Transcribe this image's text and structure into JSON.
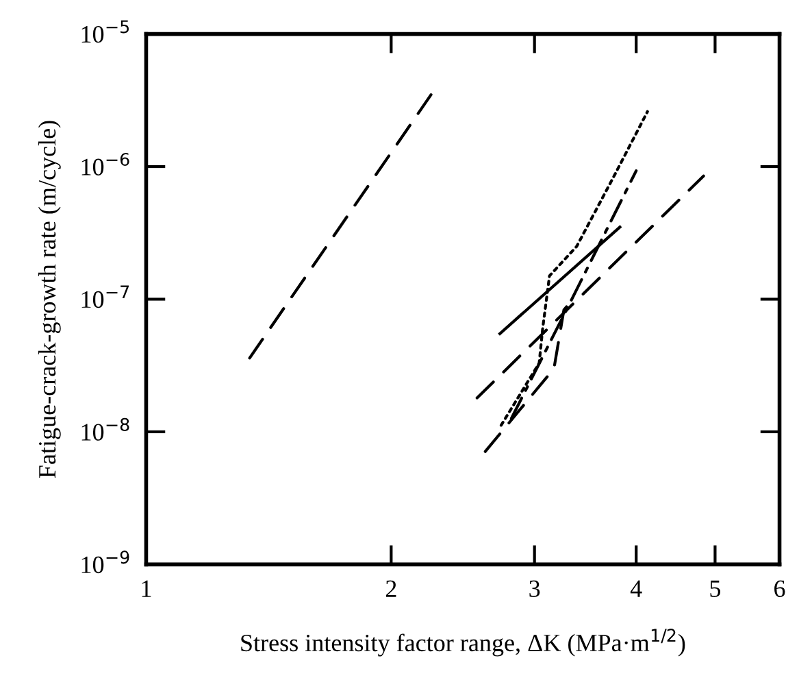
{
  "chart_data": {
    "type": "line",
    "xlabel": "Stress intensity factor range, ΔK (MPa·m$^{1/2}$)",
    "ylabel": "Fatigue-crack-growth rate (m/cycle)",
    "log": "xy",
    "grid": false,
    "legend": false,
    "marker": "none",
    "xlim": [
      1,
      6
    ],
    "xticks": [
      1,
      2,
      3,
      4,
      5,
      6
    ],
    "ylim": [
      1e-09,
      1e-05
    ],
    "yticks": [
      {
        "value": 1e-09,
        "label": "10$^{−9}$"
      },
      {
        "value": 1e-08,
        "label": "10$^{−8}$"
      },
      {
        "value": 1e-07,
        "label": "10$^{−7}$"
      },
      {
        "value": 1e-06,
        "label": "10$^{−6}$"
      },
      {
        "value": 1e-05,
        "label": "10$^{−5}$"
      }
    ],
    "series": [
      {
        "color": "#000000",
        "line_style": "dashed",
        "x": [
          1.34,
          2.24
        ],
        "values": [
          3.6e-08,
          3.5e-06
        ]
      },
      {
        "color": "#000000",
        "line_style": "solid",
        "x": [
          2.72,
          3.82
        ],
        "values": [
          5.5e-08,
          3.5e-07
        ]
      },
      {
        "color": "#000000",
        "line_style": "dashed",
        "x": [
          2.55,
          4.84
        ],
        "values": [
          1.8e-08,
          8.5e-07
        ]
      },
      {
        "color": "#000000",
        "line_style": "dashed",
        "x": [
          2.61,
          3.17,
          3.26,
          3.32
        ],
        "values": [
          7.1e-09,
          3e-08,
          8.3e-08,
          9.5e-08
        ]
      },
      {
        "color": "#000000",
        "line_style": "dotted",
        "x": [
          2.73,
          3.04,
          3.07,
          3.13,
          3.38,
          3.75,
          4.13
        ],
        "values": [
          1.12e-08,
          3.3e-08,
          6e-08,
          1.5e-07,
          2.5e-07,
          8.3e-07,
          2.6e-06
        ]
      },
      {
        "color": "#000000",
        "line_style": "dashdot",
        "x": [
          2.81,
          3.32,
          4.0
        ],
        "values": [
          1.26e-08,
          9.5e-08,
          9.3e-07
        ]
      }
    ]
  }
}
